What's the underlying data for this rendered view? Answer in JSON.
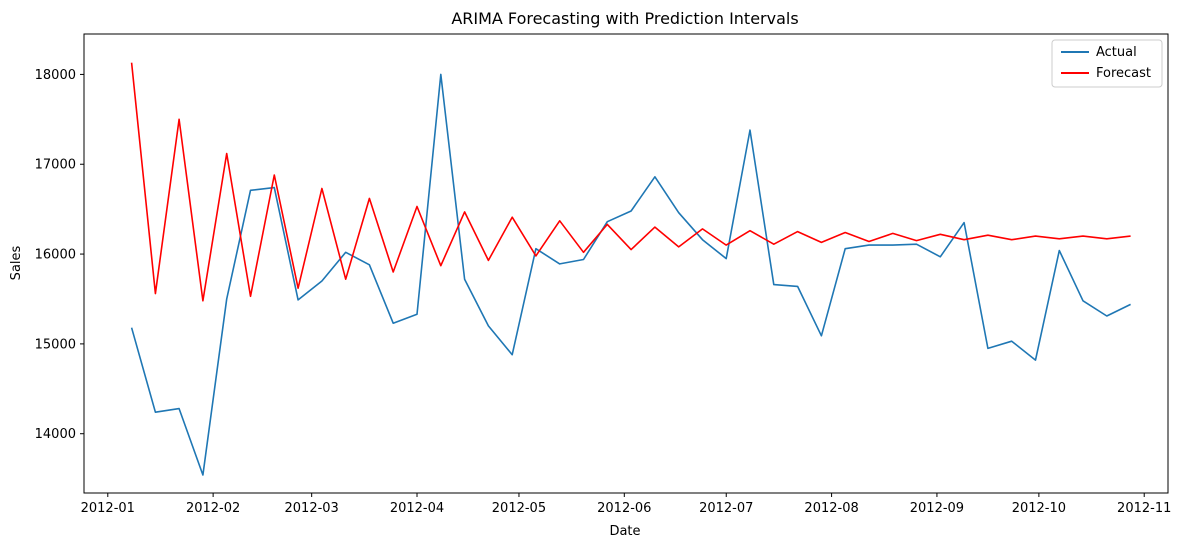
{
  "chart_data": {
    "type": "line",
    "title": "ARIMA Forecasting with Prediction Intervals",
    "xlabel": "Date",
    "ylabel": "Sales",
    "x_axis_type": "date",
    "xlim": [
      "2011-12-25",
      "2012-11-08"
    ],
    "ylim": [
      13340,
      18450
    ],
    "x_ticks": [
      {
        "label": "2012-01",
        "date": "2012-01-01"
      },
      {
        "label": "2012-02",
        "date": "2012-02-01"
      },
      {
        "label": "2012-03",
        "date": "2012-03-01"
      },
      {
        "label": "2012-04",
        "date": "2012-04-01"
      },
      {
        "label": "2012-05",
        "date": "2012-05-01"
      },
      {
        "label": "2012-06",
        "date": "2012-06-01"
      },
      {
        "label": "2012-07",
        "date": "2012-07-01"
      },
      {
        "label": "2012-08",
        "date": "2012-08-01"
      },
      {
        "label": "2012-09",
        "date": "2012-09-01"
      },
      {
        "label": "2012-10",
        "date": "2012-10-01"
      },
      {
        "label": "2012-11",
        "date": "2012-11-01"
      }
    ],
    "y_ticks": [
      {
        "label": "14000",
        "value": 14000
      },
      {
        "label": "15000",
        "value": 15000
      },
      {
        "label": "16000",
        "value": 16000
      },
      {
        "label": "17000",
        "value": 17000
      },
      {
        "label": "18000",
        "value": 18000
      }
    ],
    "grid": false,
    "legend_position": "top-right",
    "x": [
      "2012-01-08",
      "2012-01-15",
      "2012-01-22",
      "2012-01-29",
      "2012-02-05",
      "2012-02-12",
      "2012-02-19",
      "2012-02-26",
      "2012-03-04",
      "2012-03-11",
      "2012-03-18",
      "2012-03-25",
      "2012-04-01",
      "2012-04-08",
      "2012-04-15",
      "2012-04-22",
      "2012-04-29",
      "2012-05-06",
      "2012-05-13",
      "2012-05-20",
      "2012-05-27",
      "2012-06-03",
      "2012-06-10",
      "2012-06-17",
      "2012-06-24",
      "2012-07-01",
      "2012-07-08",
      "2012-07-15",
      "2012-07-22",
      "2012-07-29",
      "2012-08-05",
      "2012-08-12",
      "2012-08-19",
      "2012-08-26",
      "2012-09-02",
      "2012-09-09",
      "2012-09-16",
      "2012-09-23",
      "2012-09-30",
      "2012-10-07",
      "2012-10-14",
      "2012-10-21",
      "2012-10-28"
    ],
    "series": [
      {
        "name": "Actual",
        "color": "#1f77b4",
        "values": [
          15180,
          14240,
          14280,
          13540,
          15500,
          16710,
          16740,
          15490,
          15700,
          16020,
          15880,
          15230,
          15330,
          18000,
          15720,
          15200,
          14880,
          16060,
          15890,
          15940,
          16360,
          16480,
          16860,
          16460,
          16160,
          15950,
          17380,
          15660,
          15640,
          15090,
          16060,
          16100,
          16100,
          16110,
          15970,
          16350,
          14950,
          15030,
          14820,
          16040,
          15480,
          15310,
          15440
        ]
      },
      {
        "name": "Forecast",
        "color": "#ff0000",
        "values": [
          18130,
          15560,
          17500,
          15480,
          17120,
          15530,
          16880,
          15620,
          16730,
          15720,
          16620,
          15800,
          16530,
          15870,
          16470,
          15930,
          16410,
          15980,
          16370,
          16020,
          16330,
          16050,
          16300,
          16080,
          16280,
          16100,
          16260,
          16110,
          16250,
          16130,
          16240,
          16140,
          16230,
          16150,
          16220,
          16160,
          16210,
          16160,
          16200,
          16170,
          16200,
          16170,
          16200
        ]
      }
    ]
  }
}
